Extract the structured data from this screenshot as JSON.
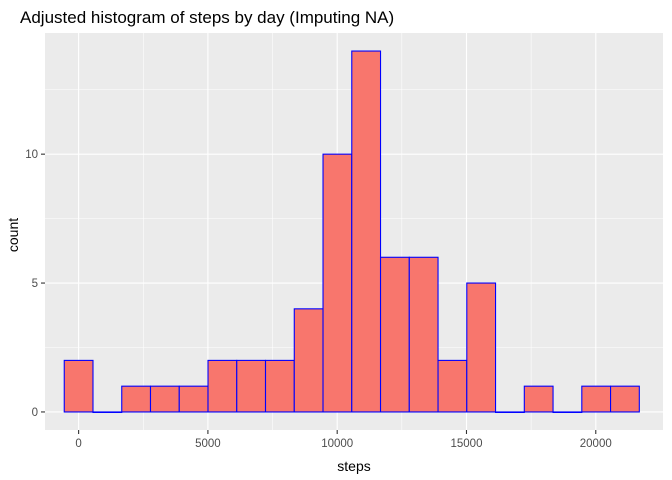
{
  "chart_data": {
    "type": "bar",
    "title": "Adjusted histogram of steps by day (Imputing NA)",
    "xlabel": "steps",
    "ylabel": "count",
    "xlim": [
      -1300,
      22600
    ],
    "ylim": [
      -0.7,
      14.7
    ],
    "x_ticks": [
      0,
      5000,
      10000,
      15000,
      20000
    ],
    "x_tick_labels": [
      "0",
      "5000",
      "10000",
      "15000",
      "20000"
    ],
    "x_minor_ticks": [
      2500,
      7500,
      12500,
      17500
    ],
    "y_ticks": [
      0,
      5,
      10
    ],
    "y_tick_labels": [
      "0",
      "5",
      "10"
    ],
    "y_minor_ticks": [
      2.5,
      7.5,
      12.5
    ],
    "grid": true,
    "legend": "none",
    "bin_width": 1112,
    "bins": [
      {
        "x_min": -556,
        "x_max": 556,
        "count": 2
      },
      {
        "x_min": 556,
        "x_max": 1668,
        "count": 0
      },
      {
        "x_min": 1668,
        "x_max": 2780,
        "count": 1
      },
      {
        "x_min": 2780,
        "x_max": 3892,
        "count": 1
      },
      {
        "x_min": 3892,
        "x_max": 5004,
        "count": 1
      },
      {
        "x_min": 5004,
        "x_max": 6116,
        "count": 2
      },
      {
        "x_min": 6116,
        "x_max": 7228,
        "count": 2
      },
      {
        "x_min": 7228,
        "x_max": 8340,
        "count": 2
      },
      {
        "x_min": 8340,
        "x_max": 9452,
        "count": 4
      },
      {
        "x_min": 9452,
        "x_max": 10564,
        "count": 10
      },
      {
        "x_min": 10564,
        "x_max": 11676,
        "count": 14
      },
      {
        "x_min": 11676,
        "x_max": 12788,
        "count": 6
      },
      {
        "x_min": 12788,
        "x_max": 13900,
        "count": 6
      },
      {
        "x_min": 13900,
        "x_max": 15012,
        "count": 2
      },
      {
        "x_min": 15012,
        "x_max": 16124,
        "count": 5
      },
      {
        "x_min": 16124,
        "x_max": 17236,
        "count": 0
      },
      {
        "x_min": 17236,
        "x_max": 18348,
        "count": 1
      },
      {
        "x_min": 18348,
        "x_max": 19460,
        "count": 0
      },
      {
        "x_min": 19460,
        "x_max": 20572,
        "count": 1
      },
      {
        "x_min": 20572,
        "x_max": 21684,
        "count": 1
      }
    ],
    "colors": {
      "bar_fill": "#f8766d",
      "bar_outline": "#0000ff",
      "panel_background": "#ebebeb",
      "grid": "#ffffff"
    }
  }
}
